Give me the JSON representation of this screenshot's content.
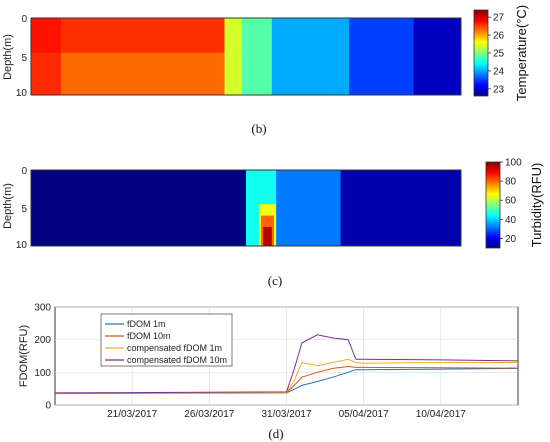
{
  "panels": [
    {
      "panel_label": "(b)",
      "chart_data": {
        "type": "heatmap",
        "ylabel": "Depth(m)",
        "yticks": [
          "0",
          "5",
          "10"
        ],
        "ylim": [
          0,
          10
        ],
        "colorbar": {
          "label": "Temperature(°C)",
          "ticks": [
            "23",
            "24",
            "25",
            "26",
            "27"
          ],
          "range": [
            22.6,
            27.4
          ]
        },
        "column_profile": [
          {
            "x0": 0.0,
            "x1": 0.07,
            "temp": 26.6
          },
          {
            "x0": 0.07,
            "x1": 0.45,
            "temp": 26.3
          },
          {
            "x0": 0.45,
            "x1": 0.49,
            "temp": 25.4
          },
          {
            "x0": 0.49,
            "x1": 0.56,
            "temp": 24.8
          },
          {
            "x0": 0.56,
            "x1": 0.74,
            "temp": 24.0
          },
          {
            "x0": 0.74,
            "x1": 0.89,
            "temp": 23.5
          },
          {
            "x0": 0.89,
            "x1": 1.0,
            "temp": 22.9
          }
        ]
      }
    },
    {
      "panel_label": "(c)",
      "chart_data": {
        "type": "heatmap",
        "ylabel": "Depth(m)",
        "yticks": [
          "0",
          "5",
          "10"
        ],
        "ylim": [
          0,
          10
        ],
        "colorbar": {
          "label": "Turbidity(RFU)",
          "ticks": [
            "20",
            "40",
            "60",
            "80",
            "100"
          ],
          "range": [
            10,
            100
          ]
        },
        "column_profile": [
          {
            "x0": 0.0,
            "x1": 0.5,
            "turbidity": 10
          },
          {
            "x0": 0.5,
            "x1": 0.57,
            "turbidity": 45
          },
          {
            "x0": 0.57,
            "x1": 0.72,
            "turbidity": 32
          },
          {
            "x0": 0.72,
            "x1": 1.0,
            "turbidity": 14
          }
        ]
      }
    },
    {
      "panel_label": "(d)",
      "chart_data": {
        "type": "line",
        "ylabel": "FDOM(RFU)",
        "ylim": [
          0,
          300
        ],
        "yticks": [
          "0",
          "100",
          "200",
          "300"
        ],
        "xlim": [
          "2017-03-16",
          "2017-04-15"
        ],
        "xticks": [
          "21/03/2017",
          "26/03/2017",
          "31/03/2017",
          "05/04/2017",
          "10/04/2017"
        ],
        "x": [
          "2017-03-16",
          "2017-03-31",
          "2017-03-31T12",
          "2017-04-01",
          "2017-04-02",
          "2017-04-03",
          "2017-04-04",
          "2017-04-04T12",
          "2017-04-05",
          "2017-04-10",
          "2017-04-15"
        ],
        "series": [
          {
            "name": "fDOM 1m",
            "color": "#1f77b4",
            "values": [
              35,
              37,
              48,
              60,
              72,
              85,
              100,
              108,
              108,
              110,
              112
            ]
          },
          {
            "name": "fDOM 10m",
            "color": "#d95319",
            "values": [
              36,
              38,
              60,
              85,
              100,
              112,
              118,
              115,
              115,
              114,
              113
            ]
          },
          {
            "name": "compensated fDOM 1m",
            "color": "#edb120",
            "values": [
              36,
              38,
              75,
              130,
              120,
              130,
              140,
              130,
              128,
              130,
              130
            ]
          },
          {
            "name": "compensated fDOM 10m",
            "color": "#7e2f8e",
            "values": [
              37,
              40,
              110,
              190,
              215,
              205,
              200,
              140,
              140,
              138,
              135
            ]
          }
        ]
      }
    }
  ]
}
